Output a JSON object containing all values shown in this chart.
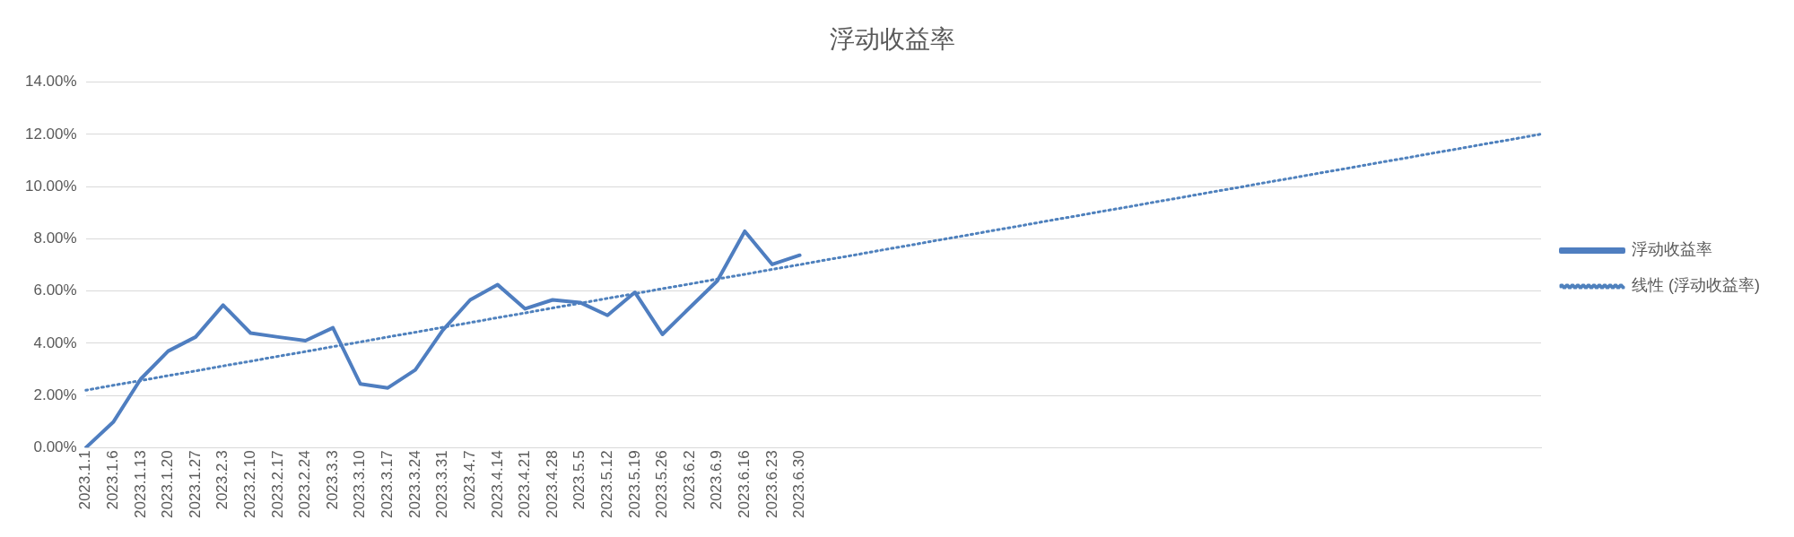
{
  "chart_data": {
    "type": "line",
    "title": "浮动收益率",
    "categories": [
      "2023.1.1",
      "2023.1.6",
      "2023.1.13",
      "2023.1.20",
      "2023.1.27",
      "2023.2.3",
      "2023.2.10",
      "2023.2.17",
      "2023.2.24",
      "2023.3.3",
      "2023.3.10",
      "2023.3.17",
      "2023.3.24",
      "2023.3.31",
      "2023.4.7",
      "2023.4.14",
      "2023.4.21",
      "2023.4.28",
      "2023.5.5",
      "2023.5.12",
      "2023.5.19",
      "2023.5.26",
      "2023.6.2",
      "2023.6.9",
      "2023.6.16",
      "2023.6.23",
      "2023.6.30",
      null,
      null,
      null,
      null,
      null,
      null,
      null,
      null,
      null,
      null,
      null,
      null,
      null,
      null,
      null,
      null,
      null,
      null,
      null,
      null,
      null,
      null,
      null,
      null,
      null,
      null,
      null
    ],
    "series": [
      {
        "name": "浮动收益率",
        "color": "#4f7ec0",
        "line_style": "solid",
        "values": [
          0,
          0.98,
          2.63,
          3.7,
          4.24,
          5.46,
          4.39,
          4.24,
          4.1,
          4.59,
          2.44,
          2.29,
          2.98,
          4.5,
          5.66,
          6.24,
          5.32,
          5.66,
          5.56,
          5.07,
          5.95,
          4.34,
          5.37,
          6.39,
          8.29,
          7.02,
          7.37,
          null,
          null,
          null,
          null,
          null,
          null,
          null,
          null,
          null,
          null,
          null,
          null,
          null,
          null,
          null,
          null,
          null,
          null,
          null,
          null,
          null,
          null,
          null,
          null,
          null,
          null,
          null
        ]
      },
      {
        "name": "线性 (浮动收益率)",
        "type": "line",
        "color": "#4f81bd",
        "line_style": "dotted",
        "values": [
          2.2,
          2.39,
          2.57,
          2.76,
          2.94,
          3.13,
          3.31,
          3.5,
          3.68,
          3.87,
          4.05,
          4.24,
          4.42,
          4.61,
          4.79,
          4.98,
          5.16,
          5.35,
          5.53,
          5.72,
          5.9,
          6.09,
          6.27,
          6.46,
          6.64,
          6.83,
          7.01,
          7.2,
          7.38,
          7.57,
          7.75,
          7.94,
          8.12,
          8.31,
          8.49,
          8.68,
          8.86,
          9.05,
          9.23,
          9.42,
          9.6,
          9.79,
          9.97,
          10.16,
          10.34,
          10.53,
          10.71,
          10.9,
          11.08,
          11.27,
          11.45,
          11.64,
          11.82,
          12.01
        ]
      }
    ],
    "ylim": [
      0,
      14
    ],
    "yticks": [
      {
        "value": 0,
        "label": "0.00%"
      },
      {
        "value": 2,
        "label": "2.00%"
      },
      {
        "value": 4,
        "label": "4.00%"
      },
      {
        "value": 6,
        "label": "6.00%"
      },
      {
        "value": 8,
        "label": "8.00%"
      },
      {
        "value": 10,
        "label": "10.00%"
      },
      {
        "value": 12,
        "label": "12.00%"
      },
      {
        "value": 14,
        "label": "14.00%"
      }
    ],
    "grid": "y",
    "legend": "right",
    "marker": "none"
  }
}
